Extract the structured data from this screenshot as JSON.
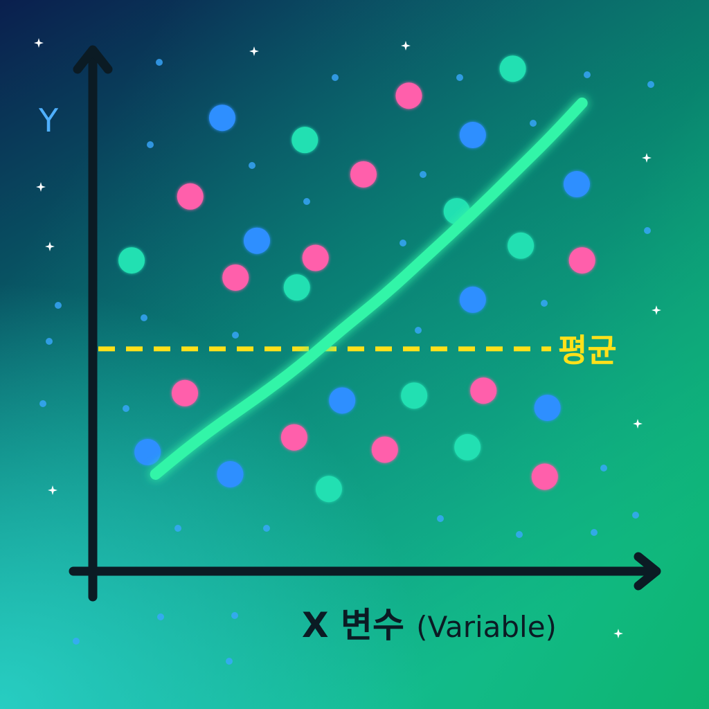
{
  "chart_data": {
    "type": "scatter",
    "title": "",
    "ylabel": "Y",
    "xlabel_bold": "X 변수",
    "xlabel_paren": "(Variable)",
    "mean_label": "평균",
    "xlim": [
      0,
      100
    ],
    "ylim": [
      0,
      100
    ],
    "grid": false,
    "legend": "none",
    "mean_y": 41,
    "trend": [
      [
        11,
        15.5
      ],
      [
        16,
        20
      ],
      [
        22,
        25
      ],
      [
        30,
        31
      ],
      [
        38,
        37.5
      ],
      [
        46,
        45
      ],
      [
        54,
        52
      ],
      [
        62,
        60
      ],
      [
        70,
        68
      ],
      [
        78,
        76.5
      ],
      [
        85,
        84
      ],
      [
        91,
        91
      ]
    ],
    "series": [
      {
        "color": "#ff5fab",
        "marker": "dot",
        "points": [
          [
            17.5,
            72
          ],
          [
            26,
            55.5
          ],
          [
            41,
            59.5
          ],
          [
            50,
            76.5
          ],
          [
            58.5,
            92.5
          ],
          [
            91,
            59
          ],
          [
            16.5,
            32
          ],
          [
            37,
            23
          ],
          [
            54,
            20.5
          ],
          [
            72.5,
            32.5
          ],
          [
            84,
            15
          ]
        ]
      },
      {
        "color": "#2f8fff",
        "marker": "dot",
        "points": [
          [
            23.5,
            88
          ],
          [
            30,
            63
          ],
          [
            70.5,
            84.5
          ],
          [
            90,
            74.5
          ],
          [
            70.5,
            51
          ],
          [
            46,
            30.5
          ],
          [
            84.5,
            29
          ],
          [
            9.5,
            20
          ],
          [
            25,
            15.5
          ]
        ]
      },
      {
        "color": "#22e0b2",
        "marker": "dot",
        "points": [
          [
            39,
            83.5
          ],
          [
            78,
            98
          ],
          [
            67.5,
            69
          ],
          [
            79.5,
            62
          ],
          [
            6.5,
            59
          ],
          [
            37.5,
            53.5
          ],
          [
            59.5,
            31.5
          ],
          [
            69.5,
            21
          ],
          [
            43.5,
            12.5
          ]
        ]
      }
    ]
  },
  "colors": {
    "bg_top": "#0a1f4e",
    "bg_bottom_left": "#2ad2c8",
    "bg_bottom_right": "#0cb36a",
    "axis": "#0b1b24",
    "ylabel": "#4fb0ff",
    "trend": "#33f5a8",
    "mean": "#ffe11a"
  }
}
